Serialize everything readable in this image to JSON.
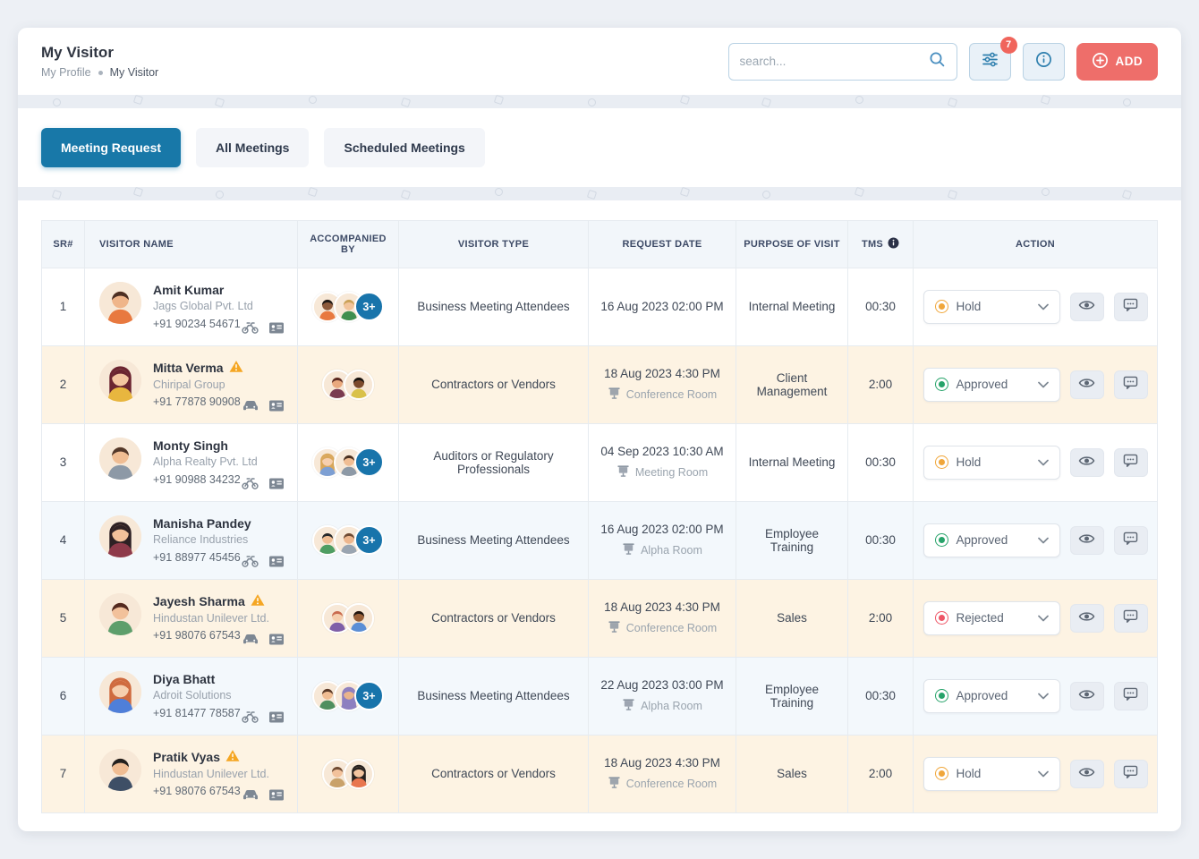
{
  "colors": {
    "accent_blue": "#1878a8",
    "add_button_red": "#ee6e6a",
    "filter_badge_red": "#f0655c",
    "more_badge_blue": "#1874ab",
    "row_warning_peach": "#fdf3e3",
    "row_alt_blue": "#f3f8fc",
    "status": {
      "Hold": "#f0a63a",
      "Approved": "#27a36a",
      "Rejected": "#ee5566"
    }
  },
  "icons": {
    "search": "magnifier",
    "filter": "sliders",
    "info": "info-circle",
    "add": "plus-circle",
    "tms_info": "info-filled-circle",
    "eye": "eye",
    "comment": "speech-bubble",
    "warning": "warning-triangle",
    "bike": "motorcycle",
    "car": "car",
    "id_card": "id-card",
    "room": "projector-screen",
    "chevron": "chevron-down",
    "status_dot": "radio-dot"
  },
  "header": {
    "title": "My Visitor",
    "breadcrumb": {
      "parent": "My Profile",
      "current": "My Visitor"
    },
    "search": {
      "placeholder": "search...",
      "value": ""
    },
    "filter_badge": "7",
    "add_label": "ADD"
  },
  "tabs": [
    {
      "label": "Meeting Request",
      "active": true
    },
    {
      "label": "All Meetings",
      "active": false
    },
    {
      "label": "Scheduled Meetings",
      "active": false
    }
  ],
  "table": {
    "columns": {
      "sr": "SR#",
      "visitor": "VISITOR NAME",
      "accompanied": "ACCOMPANIED BY",
      "type": "VISITOR TYPE",
      "date": "REQUEST DATE",
      "purpose": "PURPOSE OF VISIT",
      "tms": "TMS",
      "action": "ACTION"
    },
    "rows": [
      {
        "sr": "1",
        "name": "Amit Kumar",
        "company": "Jags Global Pvt. Ltd",
        "phone": "+91 90234 54671",
        "warning": false,
        "vehicle": "bike",
        "id_card": true,
        "bg": "white",
        "avatar": {
          "skin": "#efb58a",
          "hair": "#4c2f23",
          "shirt": "#e8793f"
        },
        "companions": [
          {
            "skin": "#8d5a3b",
            "hair": "#1f1a17",
            "shirt": "#e8793f"
          },
          {
            "skin": "#f2c49a",
            "hair": "#caa258",
            "shirt": "#3f8f4f"
          }
        ],
        "more": "3+",
        "type": "Business Meeting Attendees",
        "date": "16 Aug 2023 02:00 PM",
        "room": "",
        "purpose": "Internal Meeting",
        "tms": "00:30",
        "status": "Hold"
      },
      {
        "sr": "2",
        "name": "Mitta Verma",
        "company": "Chiripal Group",
        "phone": "+91 77878 90908",
        "warning": true,
        "vehicle": "car",
        "id_card": true,
        "bg": "peach",
        "avatar": {
          "skin": "#f4c5a0",
          "hair": "#6b2430",
          "shirt": "#e8b63f",
          "long": true
        },
        "companions": [
          {
            "skin": "#e9a97e",
            "hair": "#5a2a22",
            "shirt": "#7a3b52"
          },
          {
            "skin": "#7c4a2d",
            "hair": "#171310",
            "shirt": "#d9c14a"
          }
        ],
        "more": "",
        "type": "Contractors or Vendors",
        "date": "18 Aug 2023 4:30 PM",
        "room": "Conference Room",
        "purpose": "Client Management",
        "tms": "2:00",
        "status": "Approved"
      },
      {
        "sr": "3",
        "name": "Monty Singh",
        "company": "Alpha Realty Pvt. Ltd",
        "phone": "+91 90988 34232",
        "warning": false,
        "vehicle": "bike",
        "id_card": true,
        "bg": "white",
        "avatar": {
          "skin": "#f0bd93",
          "hair": "#53382a",
          "shirt": "#8d99a6"
        },
        "companions": [
          {
            "skin": "#f6cfae",
            "hair": "#d9a75a",
            "shirt": "#7d9fd3",
            "long": true
          },
          {
            "skin": "#f0bd93",
            "hair": "#4a3020",
            "shirt": "#8d99a6"
          }
        ],
        "more": "3+",
        "type": "Auditors or Regulatory Professionals",
        "date": "04 Sep 2023 10:30 AM",
        "room": "Meeting Room",
        "purpose": "Internal Meeting",
        "tms": "00:30",
        "status": "Hold"
      },
      {
        "sr": "4",
        "name": "Manisha Pandey",
        "company": "Reliance Industries",
        "phone": "+91 88977 45456",
        "warning": false,
        "vehicle": "bike",
        "id_card": true,
        "bg": "blue",
        "avatar": {
          "skin": "#f2c19b",
          "hair": "#2e2124",
          "shirt": "#8e3a4a",
          "long": true
        },
        "companions": [
          {
            "skin": "#f0bd93",
            "hair": "#23282b",
            "shirt": "#4f9e63"
          },
          {
            "skin": "#edb68d",
            "hair": "#6e4a33",
            "shirt": "#9aa5b1"
          }
        ],
        "more": "3+",
        "type": "Business Meeting Attendees",
        "date": "16 Aug 2023 02:00 PM",
        "room": "Alpha Room",
        "purpose": "Employee Training",
        "tms": "00:30",
        "status": "Approved"
      },
      {
        "sr": "5",
        "name": "Jayesh Sharma",
        "company": "Hindustan Unilever Ltd.",
        "phone": "+91 98076 67543",
        "warning": true,
        "vehicle": "car",
        "id_card": true,
        "bg": "peach",
        "avatar": {
          "skin": "#f2c19b",
          "hair": "#53291f",
          "shirt": "#5d9e6b"
        },
        "companions": [
          {
            "skin": "#f6cfae",
            "hair": "#c96b4f",
            "shirt": "#7e5ea8"
          },
          {
            "skin": "#9a6038",
            "hair": "#20150f",
            "shirt": "#5b8ed6"
          }
        ],
        "more": "",
        "type": "Contractors or Vendors",
        "date": "18 Aug 2023 4:30 PM",
        "room": "Conference Room",
        "purpose": "Sales",
        "tms": "2:00",
        "status": "Rejected"
      },
      {
        "sr": "6",
        "name": "Diya Bhatt",
        "company": "Adroit Solutions",
        "phone": "+91 81477 78587",
        "warning": false,
        "vehicle": "bike",
        "id_card": true,
        "bg": "blue",
        "avatar": {
          "skin": "#f6cfae",
          "hair": "#cf6b3f",
          "shirt": "#4f7fd9",
          "long": true
        },
        "companions": [
          {
            "skin": "#f0bd93",
            "hair": "#5a3a28",
            "shirt": "#4f8f5f"
          },
          {
            "skin": "#e9b48c",
            "hair": "#8d7fc0",
            "shirt": "#8d7fc0",
            "long": true
          }
        ],
        "more": "3+",
        "type": "Business Meeting Attendees",
        "date": "22 Aug 2023 03:00 PM",
        "room": "Alpha Room",
        "purpose": "Employee Training",
        "tms": "00:30",
        "status": "Approved"
      },
      {
        "sr": "7",
        "name": "Pratik Vyas",
        "company": "Hindustan Unilever Ltd.",
        "phone": "+91 98076 67543",
        "warning": true,
        "vehicle": "car",
        "id_card": true,
        "bg": "peach",
        "avatar": {
          "skin": "#f0bd93",
          "hair": "#23201e",
          "shirt": "#3e4f66"
        },
        "companions": [
          {
            "skin": "#f2c19b",
            "hair": "#6e4a33",
            "shirt": "#c9a26b"
          },
          {
            "skin": "#f4c5a0",
            "hair": "#26211f",
            "shirt": "#e8764f",
            "long": true
          }
        ],
        "more": "",
        "type": "Contractors or Vendors",
        "date": "18 Aug 2023 4:30 PM",
        "room": "Conference Room",
        "purpose": "Sales",
        "tms": "2:00",
        "status": "Hold"
      }
    ]
  }
}
